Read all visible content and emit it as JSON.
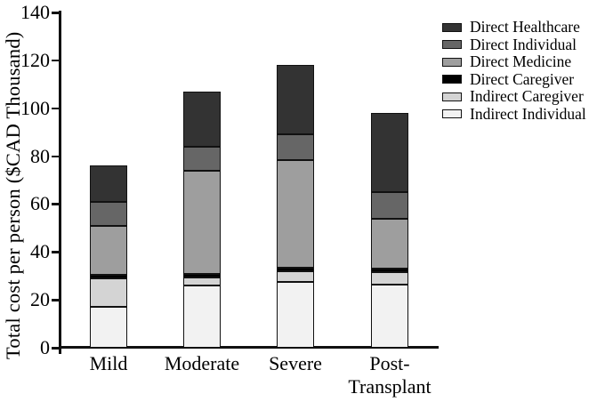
{
  "chart_data": {
    "type": "bar",
    "subtype": "stacked-vertical",
    "title": "",
    "xlabel": "",
    "ylabel": "Total cost per person ($CAD Thousand)",
    "ylim": [
      0,
      140
    ],
    "yticks": [
      0,
      20,
      40,
      60,
      80,
      100,
      120,
      140
    ],
    "grid": false,
    "legend_position": "top-right",
    "categories": [
      {
        "id": "mild",
        "label_lines": [
          "Mild"
        ]
      },
      {
        "id": "moderate",
        "label_lines": [
          "Moderate"
        ]
      },
      {
        "id": "severe",
        "label_lines": [
          "Severe"
        ]
      },
      {
        "id": "post-transplant",
        "label_lines": [
          "Post-",
          "Transplant"
        ]
      }
    ],
    "series_bottom_to_top": [
      {
        "name": "Indirect Individual",
        "color": "#f2f2f2",
        "values": [
          17,
          26,
          27.5,
          26.5
        ]
      },
      {
        "name": "Indirect Caregiver",
        "color": "#d4d4d4",
        "values": [
          12,
          3.5,
          4.5,
          5
        ]
      },
      {
        "name": "Direct Caregiver",
        "color": "#000000",
        "values": [
          1.5,
          1.5,
          1.5,
          1.5
        ]
      },
      {
        "name": "Direct Medicine",
        "color": "#9e9e9e",
        "values": [
          20.5,
          43,
          45,
          21
        ]
      },
      {
        "name": "Direct Individual",
        "color": "#666666",
        "values": [
          10,
          10,
          10.5,
          11
        ]
      },
      {
        "name": "Direct Healthcare",
        "color": "#333333",
        "values": [
          15,
          23,
          29,
          33
        ]
      }
    ],
    "legend_top_to_bottom": [
      "Direct Healthcare",
      "Direct Individual",
      "Direct Medicine",
      "Direct Caregiver",
      "Indirect Caregiver",
      "Indirect Individual"
    ],
    "totals": [
      76,
      107,
      118,
      98
    ]
  }
}
